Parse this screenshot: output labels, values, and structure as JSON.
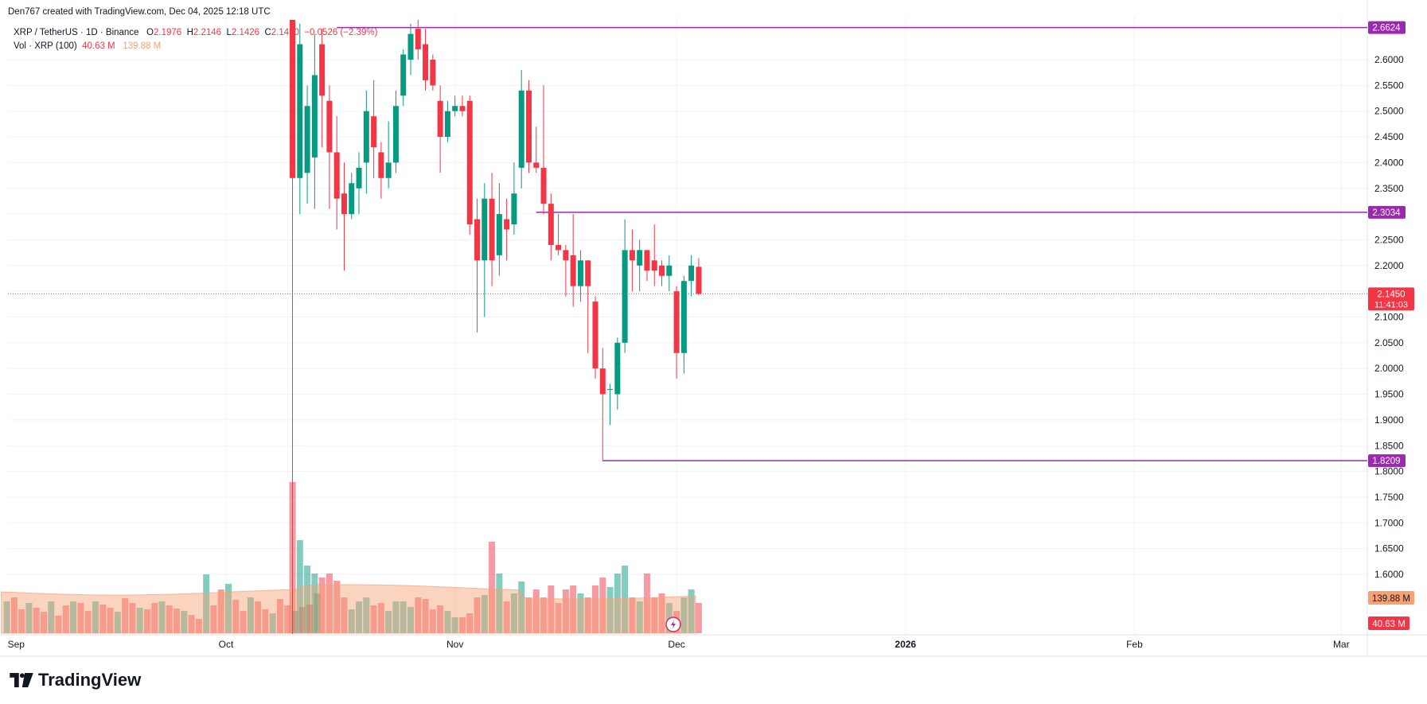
{
  "header": {
    "created_by": "Den767 created with TradingView.com, Dec 04, 2025 12:18 UTC",
    "symbol": "XRP / TetherUS · 1D · Binance",
    "o_label": "O",
    "o_value": "2.1976",
    "h_label": "H",
    "h_value": "2.2146",
    "l_label": "L",
    "l_value": "2.1426",
    "c_label": "C",
    "c_value": "2.1450",
    "change": "−0.0526 (−2.39%)",
    "vol_label": "Vol · XRP (100)",
    "vol_value": "40.63 M",
    "vol_ma_value": "139.88 M"
  },
  "brand": "TradingView",
  "colors": {
    "up": "#089981",
    "down": "#f23645",
    "level_line": "#9c27b0",
    "volume_ma": "#f7a072",
    "vol_up": "rgba(8,153,129,0.5)",
    "vol_down": "rgba(242,54,69,0.5)"
  },
  "chart_data": {
    "type": "candlestick",
    "symbol": "XRP / TetherUS",
    "interval": "1D",
    "exchange": "Binance",
    "x_tick_labels": [
      "Sep",
      "Oct",
      "Nov",
      "Dec",
      "2026",
      "Feb",
      "Mar"
    ],
    "y_tick_labels": [
      "1.6000",
      "1.6500",
      "1.7000",
      "1.7500",
      "1.8000",
      "1.8500",
      "1.9000",
      "1.9500",
      "2.0000",
      "2.0500",
      "2.1000",
      "2.1500",
      "2.2000",
      "2.2500",
      "2.3000",
      "2.3500",
      "2.4000",
      "2.4500",
      "2.5000",
      "2.5500",
      "2.6000"
    ],
    "ylim": [
      1.545,
      2.67
    ],
    "grid": true,
    "horizontal_levels": [
      {
        "price": 2.6624,
        "label": "2.6624",
        "from": "2025-10-16"
      },
      {
        "price": 2.3034,
        "label": "2.3034",
        "from": "2025-11-12"
      },
      {
        "price": 1.8209,
        "label": "1.8209",
        "from": "2025-11-21"
      }
    ],
    "last_price": {
      "price": 2.145,
      "label": "2.1450",
      "countdown": "11:41:03"
    },
    "volume_labels": {
      "ma": "139.88 M",
      "last": "40.63 M"
    },
    "candles": [
      {
        "date": "2025-10-10",
        "o": 2.84,
        "h": 3.05,
        "l": 1.25,
        "c": 2.37
      },
      {
        "date": "2025-10-11",
        "o": 2.37,
        "h": 2.67,
        "l": 2.3,
        "c": 2.63
      },
      {
        "date": "2025-10-12",
        "o": 2.38,
        "h": 2.55,
        "l": 2.32,
        "c": 2.51
      },
      {
        "date": "2025-10-13",
        "o": 2.41,
        "h": 2.65,
        "l": 2.31,
        "c": 2.57
      },
      {
        "date": "2025-10-14",
        "o": 2.63,
        "h": 2.66,
        "l": 2.43,
        "c": 2.53
      },
      {
        "date": "2025-10-15",
        "o": 2.52,
        "h": 2.55,
        "l": 2.31,
        "c": 2.42
      },
      {
        "date": "2025-10-16",
        "o": 2.42,
        "h": 2.49,
        "l": 2.27,
        "c": 2.33
      },
      {
        "date": "2025-10-17",
        "o": 2.34,
        "h": 2.4,
        "l": 2.19,
        "c": 2.3
      },
      {
        "date": "2025-10-18",
        "o": 2.3,
        "h": 2.38,
        "l": 2.29,
        "c": 2.36
      },
      {
        "date": "2025-10-19",
        "o": 2.35,
        "h": 2.42,
        "l": 2.3,
        "c": 2.39
      },
      {
        "date": "2025-10-20",
        "o": 2.4,
        "h": 2.54,
        "l": 2.34,
        "c": 2.5
      },
      {
        "date": "2025-10-21",
        "o": 2.49,
        "h": 2.56,
        "l": 2.37,
        "c": 2.43
      },
      {
        "date": "2025-10-22",
        "o": 2.42,
        "h": 2.44,
        "l": 2.33,
        "c": 2.37
      },
      {
        "date": "2025-10-23",
        "o": 2.37,
        "h": 2.48,
        "l": 2.35,
        "c": 2.4
      },
      {
        "date": "2025-10-24",
        "o": 2.4,
        "h": 2.54,
        "l": 2.38,
        "c": 2.51
      },
      {
        "date": "2025-10-25",
        "o": 2.53,
        "h": 2.62,
        "l": 2.51,
        "c": 2.61
      },
      {
        "date": "2025-10-26",
        "o": 2.6,
        "h": 2.67,
        "l": 2.57,
        "c": 2.65
      },
      {
        "date": "2025-10-27",
        "o": 2.66,
        "h": 2.68,
        "l": 2.6,
        "c": 2.62
      },
      {
        "date": "2025-10-28",
        "o": 2.63,
        "h": 2.66,
        "l": 2.54,
        "c": 2.56
      },
      {
        "date": "2025-10-29",
        "o": 2.6,
        "h": 2.61,
        "l": 2.54,
        "c": 2.55
      },
      {
        "date": "2025-10-30",
        "o": 2.52,
        "h": 2.55,
        "l": 2.38,
        "c": 2.45
      },
      {
        "date": "2025-10-31",
        "o": 2.45,
        "h": 2.52,
        "l": 2.44,
        "c": 2.5
      },
      {
        "date": "2025-11-01",
        "o": 2.5,
        "h": 2.53,
        "l": 2.49,
        "c": 2.51
      },
      {
        "date": "2025-11-02",
        "o": 2.51,
        "h": 2.53,
        "l": 2.49,
        "c": 2.5
      },
      {
        "date": "2025-11-03",
        "o": 2.52,
        "h": 2.53,
        "l": 2.26,
        "c": 2.28
      },
      {
        "date": "2025-11-04",
        "o": 2.29,
        "h": 2.33,
        "l": 2.07,
        "c": 2.21
      },
      {
        "date": "2025-11-05",
        "o": 2.21,
        "h": 2.36,
        "l": 2.1,
        "c": 2.33
      },
      {
        "date": "2025-11-06",
        "o": 2.33,
        "h": 2.38,
        "l": 2.16,
        "c": 2.21
      },
      {
        "date": "2025-11-07",
        "o": 2.22,
        "h": 2.36,
        "l": 2.18,
        "c": 2.3
      },
      {
        "date": "2025-11-08",
        "o": 2.29,
        "h": 2.33,
        "l": 2.21,
        "c": 2.27
      },
      {
        "date": "2025-11-09",
        "o": 2.28,
        "h": 2.4,
        "l": 2.26,
        "c": 2.34
      },
      {
        "date": "2025-11-10",
        "o": 2.39,
        "h": 2.58,
        "l": 2.35,
        "c": 2.54
      },
      {
        "date": "2025-11-11",
        "o": 2.54,
        "h": 2.56,
        "l": 2.38,
        "c": 2.4
      },
      {
        "date": "2025-11-12",
        "o": 2.4,
        "h": 2.47,
        "l": 2.38,
        "c": 2.39
      },
      {
        "date": "2025-11-13",
        "o": 2.39,
        "h": 2.55,
        "l": 2.3,
        "c": 2.32
      },
      {
        "date": "2025-11-14",
        "o": 2.32,
        "h": 2.34,
        "l": 2.21,
        "c": 2.24
      },
      {
        "date": "2025-11-15",
        "o": 2.24,
        "h": 2.3,
        "l": 2.22,
        "c": 2.23
      },
      {
        "date": "2025-11-16",
        "o": 2.23,
        "h": 2.24,
        "l": 2.14,
        "c": 2.21
      },
      {
        "date": "2025-11-17",
        "o": 2.22,
        "h": 2.3,
        "l": 2.12,
        "c": 2.16
      },
      {
        "date": "2025-11-18",
        "o": 2.16,
        "h": 2.23,
        "l": 2.13,
        "c": 2.21
      },
      {
        "date": "2025-11-19",
        "o": 2.21,
        "h": 2.21,
        "l": 2.03,
        "c": 2.16
      },
      {
        "date": "2025-11-20",
        "o": 2.13,
        "h": 2.14,
        "l": 1.98,
        "c": 2.0
      },
      {
        "date": "2025-11-21",
        "o": 2.0,
        "h": 2.04,
        "l": 1.82,
        "c": 1.95
      },
      {
        "date": "2025-11-22",
        "o": 1.96,
        "h": 1.97,
        "l": 1.89,
        "c": 1.96
      },
      {
        "date": "2025-11-23",
        "o": 1.95,
        "h": 2.06,
        "l": 1.92,
        "c": 2.05
      },
      {
        "date": "2025-11-24",
        "o": 2.05,
        "h": 2.29,
        "l": 2.03,
        "c": 2.23
      },
      {
        "date": "2025-11-25",
        "o": 2.23,
        "h": 2.27,
        "l": 2.15,
        "c": 2.21
      },
      {
        "date": "2025-11-26",
        "o": 2.2,
        "h": 2.25,
        "l": 2.15,
        "c": 2.23
      },
      {
        "date": "2025-11-27",
        "o": 2.23,
        "h": 2.23,
        "l": 2.17,
        "c": 2.19
      },
      {
        "date": "2025-11-28",
        "o": 2.21,
        "h": 2.28,
        "l": 2.16,
        "c": 2.19
      },
      {
        "date": "2025-11-29",
        "o": 2.2,
        "h": 2.21,
        "l": 2.16,
        "c": 2.18
      },
      {
        "date": "2025-11-30",
        "o": 2.18,
        "h": 2.22,
        "l": 2.15,
        "c": 2.2
      },
      {
        "date": "2025-12-01",
        "o": 2.15,
        "h": 2.16,
        "l": 1.98,
        "c": 2.03
      },
      {
        "date": "2025-12-02",
        "o": 2.03,
        "h": 2.18,
        "l": 1.99,
        "c": 2.17
      },
      {
        "date": "2025-12-03",
        "o": 2.17,
        "h": 2.22,
        "l": 2.14,
        "c": 2.2
      },
      {
        "date": "2025-12-04",
        "o": 2.1976,
        "h": 2.2146,
        "l": 2.1426,
        "c": 2.145
      }
    ],
    "volume_ma_approx": 139.88
  }
}
